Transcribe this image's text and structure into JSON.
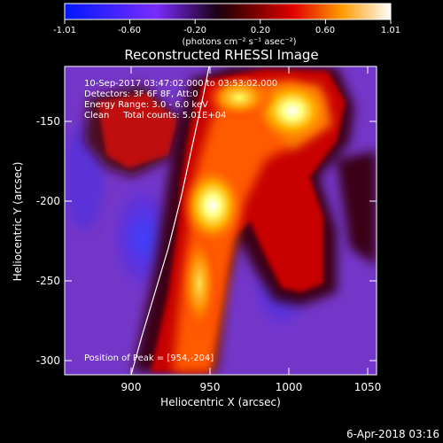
{
  "colorbar": {
    "ticks": [
      "-1.01",
      "-0.60",
      "-0.20",
      "0.20",
      "0.60",
      "1.01"
    ],
    "unit_label": "(photons cm⁻² s⁻¹ asec⁻²)"
  },
  "plot": {
    "title": "Reconstructed RHESSI Image",
    "info_lines": [
      "10-Sep-2017 03:47:02.000 to 03:53:02.000",
      "Detectors: 3F 6F 8F, Att:0",
      "Energy Range: 3.0 - 6.0 keV",
      "Clean     Total counts: 5.01E+04"
    ],
    "peak_label": "Position of Peak = [954,-204]",
    "xlabel": "Heliocentric X (arcsec)",
    "ylabel": "Heliocentric Y (arcsec)",
    "xticks": [
      "900",
      "950",
      "1000",
      "1050"
    ],
    "yticks": [
      "-150",
      "-200",
      "-250",
      "-300"
    ]
  },
  "footer": {
    "date": "6-Apr-2018 03:16"
  }
}
